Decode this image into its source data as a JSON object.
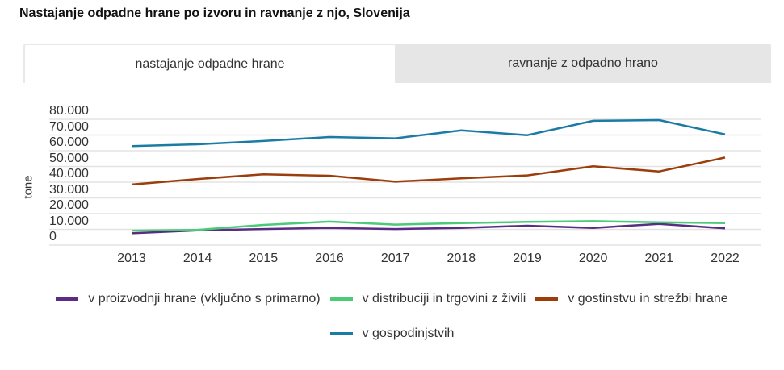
{
  "title": "Nastajanje odpadne hrane po izvoru in ravnanje z njo, Slovenija",
  "tabs": [
    {
      "label": "nastajanje odpadne hrane",
      "active": true
    },
    {
      "label": "ravnanje z odpadno hrano",
      "active": false
    }
  ],
  "chart_data": {
    "type": "line",
    "title": "",
    "xlabel": "",
    "ylabel": "tone",
    "x": [
      "2013",
      "2014",
      "2015",
      "2016",
      "2017",
      "2018",
      "2019",
      "2020",
      "2021",
      "2022"
    ],
    "ylim": [
      0,
      80000
    ],
    "yticks": [
      0,
      10000,
      20000,
      30000,
      40000,
      50000,
      60000,
      70000,
      80000
    ],
    "ytick_labels": [
      "0",
      "10.000",
      "20.000",
      "30.000",
      "40.000",
      "50.000",
      "60.000",
      "70.000",
      "80.000"
    ],
    "grid": true,
    "legend_position": "bottom",
    "series": [
      {
        "name": "v proizvodnji hrane (vključno s primarno)",
        "color": "#5b2c83",
        "values": [
          7500,
          9400,
          10200,
          10900,
          10200,
          10900,
          12300,
          10900,
          13500,
          10600
        ]
      },
      {
        "name": "v distribuciji in trgovini z živili",
        "color": "#4bcb78",
        "values": [
          9200,
          9700,
          12800,
          14900,
          13000,
          14000,
          14700,
          15200,
          14500,
          14000
        ]
      },
      {
        "name": "v gostinstvu in strežbi hrane",
        "color": "#9c3d0c",
        "values": [
          38500,
          42000,
          45000,
          44100,
          40300,
          42400,
          44300,
          50100,
          46800,
          55700
        ]
      },
      {
        "name": "v gospodinjstvih",
        "color": "#1a7ca5",
        "values": [
          62900,
          64100,
          66200,
          68700,
          67900,
          73000,
          69900,
          79000,
          79500,
          70400
        ]
      }
    ]
  }
}
